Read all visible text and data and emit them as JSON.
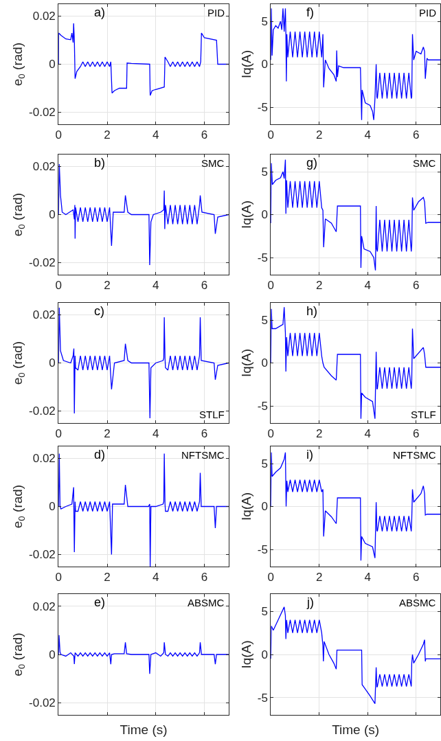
{
  "chart_data": [
    {
      "type": "line",
      "ylabel": "e$_{0}$ (rad)",
      "annotations": [
        "a)",
        "PID"
      ],
      "xlim": [
        0,
        7
      ],
      "xticks": [
        0,
        2,
        4,
        6
      ],
      "ylim": [
        -0.025,
        0.025
      ],
      "yticks": [
        -0.02,
        0,
        0.02
      ],
      "grid": true,
      "series": [
        {
          "color": "#0000ff",
          "x": [
            0,
            0.005,
            0.1,
            0.3,
            0.5,
            0.55,
            0.6,
            0.62,
            0.65,
            0.68,
            0.75,
            0.9,
            1.0,
            1.1,
            1.2,
            1.3,
            1.4,
            1.5,
            1.6,
            1.7,
            1.8,
            1.9,
            2.0,
            2.1,
            2.15,
            2.2,
            2.3,
            2.5,
            2.8,
            2.82,
            3.0,
            3.75,
            3.77,
            3.85,
            4.0,
            4.35,
            4.38,
            4.5,
            4.6,
            4.7,
            4.8,
            4.9,
            5.0,
            5.1,
            5.2,
            5.3,
            5.4,
            5.5,
            5.6,
            5.7,
            5.8,
            5.85,
            5.88,
            6.0,
            6.5,
            6.55,
            7
          ],
          "values": [
            0,
            0.013,
            0.012,
            0.0105,
            0.0102,
            0.013,
            0.009,
            0.017,
            0.01,
            -0.006,
            -0.003,
            -0.001,
            0.001,
            -0.001,
            0.001,
            -0.001,
            0.001,
            -0.001,
            0.001,
            -0.001,
            0.001,
            -0.001,
            0.001,
            -0.001,
            0.001,
            -0.012,
            -0.011,
            -0.01,
            -0.01,
            0.0005,
            0.0003,
            0,
            -0.013,
            -0.011,
            -0.0105,
            -0.0095,
            0.003,
            0.001,
            -0.001,
            0.001,
            -0.001,
            0.001,
            -0.001,
            0.001,
            -0.001,
            0.001,
            -0.001,
            0.001,
            -0.001,
            0.001,
            -0.001,
            0.001,
            0.013,
            0.011,
            0.01,
            0,
            0
          ]
        }
      ]
    },
    {
      "type": "line",
      "ylabel": "Iq(A)",
      "annotations": [
        "f)",
        "PID"
      ],
      "xlim": [
        0,
        7
      ],
      "xticks": [
        0,
        2,
        4,
        6
      ],
      "ylim": [
        -7,
        7
      ],
      "yticks": [
        -5,
        0,
        5
      ],
      "grid": true,
      "series": [
        {
          "color": "#0000ff",
          "x": [
            0,
            0.02,
            0.05,
            0.1,
            0.2,
            0.3,
            0.4,
            0.45,
            0.5,
            0.55,
            0.6,
            0.62,
            0.64,
            0.66,
            0.7,
            0.8,
            0.9,
            1.0,
            1.1,
            1.2,
            1.3,
            1.4,
            1.5,
            1.6,
            1.7,
            1.8,
            1.9,
            2.0,
            2.1,
            2.15,
            2.18,
            2.25,
            2.4,
            2.6,
            2.7,
            2.72,
            2.75,
            2.8,
            3.0,
            3.7,
            3.75,
            3.77,
            3.9,
            4.1,
            4.2,
            4.25,
            4.3,
            4.35,
            4.38,
            4.4,
            4.5,
            4.6,
            4.7,
            4.8,
            4.9,
            5.0,
            5.1,
            5.2,
            5.3,
            5.4,
            5.5,
            5.6,
            5.7,
            5.8,
            5.82,
            5.85,
            5.9,
            6.0,
            6.2,
            6.3,
            6.35,
            6.38,
            6.45,
            6.5,
            7
          ],
          "values": [
            0.5,
            6.5,
            1,
            4,
            4.5,
            4.2,
            5,
            4,
            6.5,
            3.8,
            6.5,
            3.5,
            -2,
            3.5,
            0.8,
            3.8,
            0.8,
            3.8,
            0.8,
            3.8,
            0.8,
            3.8,
            0.8,
            3.8,
            0.8,
            3.8,
            0.8,
            3.8,
            0.8,
            3.5,
            -2.7,
            0.5,
            -0.5,
            -1.2,
            -2,
            1.6,
            -1.5,
            -0.2,
            -0.4,
            -0.4,
            -6.5,
            -3,
            -4.5,
            -4.8,
            -5.5,
            -6.5,
            -4,
            0,
            -3.8,
            -4,
            -1,
            -4,
            -1,
            -4,
            -1,
            -4,
            -1,
            -4,
            -1,
            -4,
            -1,
            -4,
            -1,
            -4,
            -3.8,
            3.5,
            0.5,
            1.5,
            1.2,
            2,
            1.5,
            -1.7,
            0.7,
            0.5,
            0.5
          ]
        }
      ]
    },
    {
      "type": "line",
      "ylabel": "e$_{0}$ (rad)",
      "annotations": [
        "b)",
        "SMC"
      ],
      "xlim": [
        0,
        7
      ],
      "xticks": [
        0,
        2,
        4,
        6
      ],
      "ylim": [
        -0.025,
        0.025
      ],
      "yticks": [
        -0.02,
        0,
        0.02
      ],
      "grid": true,
      "series": [
        {
          "color": "#0000ff",
          "x": [
            0,
            0.03,
            0.08,
            0.15,
            0.3,
            0.6,
            0.65,
            0.67,
            0.68,
            0.7,
            0.8,
            0.9,
            1.0,
            1.1,
            1.2,
            1.3,
            1.4,
            1.5,
            1.6,
            1.7,
            1.8,
            1.9,
            2.0,
            2.1,
            2.18,
            2.25,
            2.7,
            2.75,
            2.85,
            3.0,
            3.72,
            3.75,
            3.8,
            3.9,
            4.2,
            4.33,
            4.35,
            4.37,
            4.4,
            4.5,
            4.6,
            4.7,
            4.8,
            4.9,
            5.0,
            5.1,
            5.2,
            5.3,
            5.4,
            5.5,
            5.6,
            5.7,
            5.8,
            5.83,
            5.9,
            6.4,
            6.45,
            6.55,
            7
          ],
          "values": [
            0,
            0.021,
            0.008,
            0.001,
            0,
            0.002,
            -0.002,
            0.004,
            -0.01,
            0.003,
            -0.003,
            0.003,
            -0.003,
            0.003,
            -0.003,
            0.003,
            -0.003,
            0.003,
            -0.003,
            0.003,
            -0.003,
            0.003,
            -0.003,
            0.003,
            -0.013,
            0.001,
            0.001,
            0.008,
            0.001,
            0,
            0,
            -0.021,
            -0.003,
            0,
            0.001,
            0.002,
            0.01,
            -0.006,
            0.004,
            -0.004,
            0.004,
            -0.004,
            0.004,
            -0.004,
            0.004,
            -0.004,
            0.004,
            -0.004,
            0.004,
            -0.004,
            0.004,
            -0.004,
            0.004,
            0.008,
            0.001,
            0,
            -0.008,
            -0.001,
            0
          ]
        }
      ]
    },
    {
      "type": "line",
      "ylabel": "Iq(A)",
      "annotations": [
        "g)",
        "SMC"
      ],
      "xlim": [
        0,
        7
      ],
      "xticks": [
        0,
        2,
        4,
        6
      ],
      "ylim": [
        -7,
        7
      ],
      "yticks": [
        -5,
        0,
        5
      ],
      "grid": true,
      "series": [
        {
          "color": "#0000ff",
          "x": [
            0,
            0.02,
            0.06,
            0.2,
            0.4,
            0.5,
            0.55,
            0.6,
            0.62,
            0.65,
            0.7,
            0.8,
            0.9,
            1.0,
            1.1,
            1.2,
            1.3,
            1.4,
            1.5,
            1.6,
            1.7,
            1.8,
            1.9,
            2.0,
            2.1,
            2.15,
            2.18,
            2.25,
            2.5,
            2.7,
            2.75,
            2.85,
            3.7,
            3.72,
            3.75,
            3.85,
            4.1,
            4.25,
            4.32,
            4.35,
            4.37,
            4.4,
            4.5,
            4.6,
            4.7,
            4.8,
            4.9,
            5.0,
            5.1,
            5.2,
            5.3,
            5.4,
            5.5,
            5.6,
            5.7,
            5.8,
            5.82,
            5.85,
            5.9,
            6.1,
            6.3,
            6.35,
            6.4,
            6.5,
            7
          ],
          "values": [
            -1,
            6,
            3.5,
            4,
            4.3,
            5,
            4.2,
            6.4,
            0.1,
            4,
            0.8,
            3.9,
            0.8,
            3.9,
            0.8,
            3.9,
            0.8,
            3.9,
            0.8,
            3.9,
            0.8,
            3.9,
            0.8,
            3.9,
            0.8,
            0.5,
            -3.8,
            -0.5,
            -1,
            -2,
            1,
            1,
            1,
            -6.2,
            -2.5,
            -4,
            -4.3,
            -5,
            -6.5,
            1,
            -4,
            -4.3,
            -0.6,
            -4.3,
            -0.6,
            -4.3,
            -0.6,
            -4.3,
            -0.6,
            -4.3,
            -0.6,
            -4.3,
            -0.6,
            -4.3,
            -0.6,
            -4.3,
            -3.5,
            2,
            0.5,
            1.5,
            2,
            1.5,
            -1,
            -0.9,
            -0.9
          ]
        }
      ]
    },
    {
      "type": "line",
      "ylabel": "e$_{0}$ (rad)",
      "annotations": [
        "c)",
        "STLF"
      ],
      "xlim": [
        0,
        7
      ],
      "xticks": [
        0,
        2,
        4,
        6
      ],
      "ylim": [
        -0.025,
        0.025
      ],
      "yticks": [
        -0.02,
        0,
        0.02
      ],
      "grid": true,
      "series": [
        {
          "color": "#0000ff",
          "x": [
            0,
            0.03,
            0.08,
            0.2,
            0.5,
            0.6,
            0.63,
            0.65,
            0.68,
            0.7,
            0.8,
            0.9,
            1.0,
            1.1,
            1.2,
            1.3,
            1.4,
            1.5,
            1.6,
            1.7,
            1.8,
            1.9,
            2.0,
            2.1,
            2.18,
            2.3,
            2.7,
            2.75,
            2.85,
            3.0,
            3.72,
            3.76,
            3.8,
            4.0,
            4.3,
            4.33,
            4.35,
            4.38,
            4.4,
            4.5,
            4.6,
            4.7,
            4.8,
            4.9,
            5.0,
            5.1,
            5.2,
            5.3,
            5.4,
            5.5,
            5.6,
            5.7,
            5.8,
            5.83,
            5.87,
            6.4,
            6.45,
            6.55,
            7
          ],
          "values": [
            0,
            0.023,
            0.005,
            0.001,
            0,
            0.003,
            0.006,
            -0.021,
            0.003,
            -0.002,
            -0.003,
            0.003,
            -0.003,
            0.003,
            -0.003,
            0.003,
            -0.003,
            0.003,
            -0.003,
            0.003,
            -0.003,
            0.003,
            -0.003,
            0.003,
            -0.011,
            0,
            0.001,
            0.008,
            0.001,
            0,
            0,
            -0.023,
            -0.002,
            0,
            0.001,
            0.002,
            0.019,
            0.002,
            -0.002,
            -0.003,
            0.003,
            -0.003,
            0.003,
            -0.003,
            0.003,
            -0.003,
            0.003,
            -0.003,
            0.003,
            -0.003,
            0.003,
            -0.003,
            0.003,
            0.019,
            0.001,
            0,
            -0.007,
            -0.001,
            0
          ]
        }
      ]
    },
    {
      "type": "line",
      "ylabel": "Iq(A)",
      "annotations": [
        "h)",
        "STLF"
      ],
      "xlim": [
        0,
        7
      ],
      "xticks": [
        0,
        2,
        4,
        6
      ],
      "ylim": [
        -7,
        7
      ],
      "yticks": [
        -5,
        0,
        5
      ],
      "grid": true,
      "series": [
        {
          "color": "#0000ff",
          "x": [
            0,
            0.02,
            0.05,
            0.2,
            0.5,
            0.55,
            0.6,
            0.62,
            0.65,
            0.7,
            0.8,
            0.9,
            1.0,
            1.1,
            1.2,
            1.3,
            1.4,
            1.5,
            1.6,
            1.7,
            1.8,
            1.9,
            2.0,
            2.1,
            2.15,
            2.2,
            2.5,
            2.7,
            2.75,
            3.7,
            3.72,
            3.75,
            3.9,
            4.2,
            4.3,
            4.35,
            4.38,
            4.4,
            4.5,
            4.6,
            4.7,
            4.8,
            4.9,
            5.0,
            5.1,
            5.2,
            5.3,
            5.4,
            5.5,
            5.6,
            5.7,
            5.8,
            5.82,
            5.85,
            5.9,
            6.3,
            6.35,
            6.4,
            6.5,
            7
          ],
          "values": [
            0,
            6.3,
            4,
            4,
            4.5,
            6.5,
            3.5,
            -1,
            3,
            0.8,
            3.5,
            0.8,
            3.5,
            0.8,
            3.5,
            0.8,
            3.5,
            0.8,
            3.5,
            0.8,
            3.5,
            0.8,
            3.5,
            0.8,
            0,
            -0.5,
            -1.5,
            -2,
            1,
            1,
            -6.5,
            -3.5,
            -4,
            -4.5,
            -6.5,
            1.3,
            -3,
            -3,
            -0.5,
            -3,
            -0.5,
            -3,
            -0.5,
            -3,
            -0.5,
            -3,
            -0.5,
            -3,
            -0.5,
            -3,
            -0.5,
            -3,
            -2,
            4,
            0.5,
            1.8,
            1,
            -0.5,
            -0.5,
            -0.5
          ]
        }
      ]
    },
    {
      "type": "line",
      "ylabel": "e$_{0}$ (rad)",
      "annotations": [
        "d)",
        "NFTSMC"
      ],
      "xlim": [
        0,
        7
      ],
      "xticks": [
        0,
        2,
        4,
        6
      ],
      "ylim": [
        -0.025,
        0.025
      ],
      "yticks": [
        -0.02,
        0,
        0.02
      ],
      "grid": true,
      "series": [
        {
          "color": "#0000ff",
          "x": [
            0,
            0.03,
            0.06,
            0.1,
            0.3,
            0.55,
            0.62,
            0.65,
            0.68,
            0.7,
            0.8,
            0.9,
            1.0,
            1.1,
            1.2,
            1.3,
            1.4,
            1.5,
            1.6,
            1.7,
            1.8,
            1.9,
            2.0,
            2.1,
            2.18,
            2.22,
            2.7,
            2.75,
            2.85,
            3.7,
            3.75,
            3.77,
            3.8,
            4.0,
            4.3,
            4.33,
            4.35,
            4.38,
            4.4,
            4.5,
            4.6,
            4.7,
            4.8,
            4.9,
            5.0,
            5.1,
            5.2,
            5.3,
            5.4,
            5.5,
            5.6,
            5.7,
            5.8,
            5.83,
            5.87,
            6.4,
            6.45,
            6.5,
            7
          ],
          "values": [
            0,
            0.022,
            0,
            -0.001,
            0,
            0.001,
            0.008,
            -0.019,
            0.002,
            -0.002,
            -0.002,
            0.002,
            -0.002,
            0.002,
            -0.002,
            0.002,
            -0.002,
            0.002,
            -0.002,
            0.002,
            -0.002,
            0.002,
            -0.002,
            0.002,
            -0.02,
            0.001,
            0.001,
            0.009,
            0,
            0,
            0.001,
            -0.025,
            0,
            0,
            0.001,
            0.002,
            0.022,
            0.001,
            -0.002,
            -0.002,
            0.002,
            -0.002,
            0.002,
            -0.002,
            0.002,
            -0.002,
            0.002,
            -0.002,
            0.002,
            -0.002,
            0.002,
            -0.002,
            0.002,
            0.014,
            0,
            0,
            -0.009,
            0,
            0
          ]
        }
      ]
    },
    {
      "type": "line",
      "ylabel": "Iq(A)",
      "annotations": [
        "i)",
        "NFTSMC"
      ],
      "xlim": [
        0,
        7
      ],
      "xticks": [
        0,
        2,
        4,
        6
      ],
      "ylim": [
        -7,
        7
      ],
      "yticks": [
        -5,
        0,
        5
      ],
      "grid": true,
      "series": [
        {
          "color": "#0000ff",
          "x": [
            0,
            0.02,
            0.05,
            0.2,
            0.4,
            0.55,
            0.6,
            0.63,
            0.66,
            0.7,
            0.8,
            0.9,
            1.0,
            1.1,
            1.2,
            1.3,
            1.4,
            1.5,
            1.6,
            1.7,
            1.8,
            1.9,
            2.0,
            2.1,
            2.15,
            2.18,
            2.25,
            2.5,
            2.7,
            2.75,
            3.7,
            3.72,
            3.75,
            3.9,
            4.2,
            4.3,
            4.35,
            4.38,
            4.4,
            4.5,
            4.6,
            4.7,
            4.8,
            4.9,
            5.0,
            5.1,
            5.2,
            5.3,
            5.4,
            5.5,
            5.6,
            5.7,
            5.8,
            5.82,
            5.85,
            5.9,
            6.2,
            6.3,
            6.35,
            6.38,
            6.45,
            7
          ],
          "values": [
            0,
            6.3,
            3.5,
            4,
            4.5,
            5.5,
            6.3,
            0,
            3,
            1.7,
            3.1,
            1.7,
            3.1,
            1.7,
            3.1,
            1.7,
            3.1,
            1.7,
            3.1,
            1.7,
            3.1,
            1.7,
            3.1,
            1.7,
            2,
            -3.5,
            -0.5,
            -1.2,
            -2,
            1,
            1,
            -6.3,
            -3.5,
            -4.3,
            -4.7,
            -6,
            0.5,
            -2.8,
            -2.9,
            -1.1,
            -2.9,
            -1.1,
            -2.9,
            -1.1,
            -2.9,
            -1.1,
            -2.9,
            -1.1,
            -2.9,
            -1.1,
            -2.9,
            -1.1,
            -2.9,
            -1.5,
            2,
            0.5,
            1.5,
            2.4,
            1.5,
            -1,
            -0.9,
            -0.9
          ]
        }
      ]
    },
    {
      "type": "line",
      "xlabel": "Time (s)",
      "ylabel": "e$_{0}$ (rad)",
      "annotations": [
        "e)",
        "ABSMC"
      ],
      "xlim": [
        0,
        7
      ],
      "xticks": [
        0,
        2,
        4,
        6
      ],
      "ylim": [
        -0.025,
        0.025
      ],
      "yticks": [
        -0.02,
        0,
        0.02
      ],
      "grid": true,
      "tick_labels": "y",
      "series": [
        {
          "color": "#0000ff",
          "x": [
            0,
            0.02,
            0.06,
            0.1,
            0.3,
            0.5,
            0.63,
            0.65,
            0.68,
            0.8,
            0.9,
            1.0,
            1.1,
            1.2,
            1.3,
            1.4,
            1.5,
            1.6,
            1.7,
            1.8,
            1.9,
            2.0,
            2.1,
            2.15,
            2.18,
            2.3,
            2.7,
            2.75,
            2.8,
            3.0,
            3.72,
            3.75,
            3.8,
            4.0,
            4.2,
            4.33,
            4.35,
            4.4,
            4.5,
            4.6,
            4.7,
            4.8,
            4.9,
            5.0,
            5.1,
            5.2,
            5.3,
            5.4,
            5.5,
            5.6,
            5.7,
            5.8,
            5.83,
            5.88,
            6.4,
            6.45,
            6.5,
            7
          ],
          "values": [
            0,
            0.008,
            0.001,
            0,
            -0.0007,
            0.0007,
            -0.0007,
            -0.004,
            0.0007,
            -0.0007,
            0.0007,
            -0.0007,
            0.0007,
            -0.0007,
            0.0007,
            -0.0007,
            0.0007,
            -0.0007,
            0.0007,
            -0.0007,
            0.0007,
            -0.0007,
            0.0007,
            -0.004,
            0,
            0.0003,
            0.0003,
            0.005,
            0.0003,
            0,
            0,
            -0.008,
            0,
            0.0007,
            -0.0007,
            0.0007,
            0.005,
            0,
            -0.0007,
            0.0007,
            -0.0007,
            0.0007,
            -0.0007,
            0.0007,
            -0.0007,
            0.0007,
            -0.0007,
            0.0007,
            -0.0007,
            0.0007,
            -0.0007,
            0.0007,
            0.005,
            0,
            0,
            -0.004,
            0,
            0
          ]
        }
      ]
    },
    {
      "type": "line",
      "xlabel": "Time (s)",
      "ylabel": "Iq(A)",
      "annotations": [
        "j)",
        "ABSMC"
      ],
      "xlim": [
        0,
        7
      ],
      "xticks": [
        0,
        2,
        4,
        6
      ],
      "ylim": [
        -7,
        7
      ],
      "yticks": [
        -5,
        0,
        5
      ],
      "grid": true,
      "tick_labels": "y",
      "series": [
        {
          "color": "#0000ff",
          "x": [
            0,
            0.02,
            0.1,
            0.3,
            0.55,
            0.6,
            0.62,
            0.65,
            0.7,
            0.8,
            0.9,
            1.0,
            1.1,
            1.2,
            1.3,
            1.4,
            1.5,
            1.6,
            1.7,
            1.8,
            1.9,
            2.0,
            2.1,
            2.15,
            2.17,
            2.2,
            2.4,
            2.6,
            2.7,
            2.73,
            2.8,
            3.75,
            3.77,
            3.9,
            4.1,
            4.3,
            4.35,
            4.38,
            4.4,
            4.5,
            4.6,
            4.7,
            4.8,
            4.9,
            5.0,
            5.1,
            5.2,
            5.3,
            5.4,
            5.5,
            5.6,
            5.7,
            5.8,
            5.82,
            5.85,
            5.9,
            6.1,
            6.3,
            6.35,
            6.38,
            6.4,
            7
          ],
          "values": [
            -0.5,
            3.3,
            2.8,
            4,
            5.5,
            4.5,
            1.8,
            4,
            2.5,
            4,
            2.5,
            4,
            2.5,
            4,
            2.5,
            4,
            2.5,
            4,
            2.5,
            4,
            2.5,
            4,
            2.5,
            1,
            -0.8,
            1.5,
            0,
            -1,
            -1.7,
            0.5,
            0.5,
            0.5,
            -3.5,
            -4,
            -4.8,
            -5.7,
            -1.5,
            -3.8,
            -3.7,
            -2.3,
            -3.7,
            -2.3,
            -3.7,
            -2.3,
            -3.7,
            -2.3,
            -3.7,
            -2.3,
            -3.7,
            -2.3,
            -3.7,
            -2.3,
            -3.7,
            -1,
            0,
            -1,
            0,
            1.2,
            1.7,
            -0.8,
            -0.5,
            -0.5
          ]
        }
      ]
    }
  ]
}
